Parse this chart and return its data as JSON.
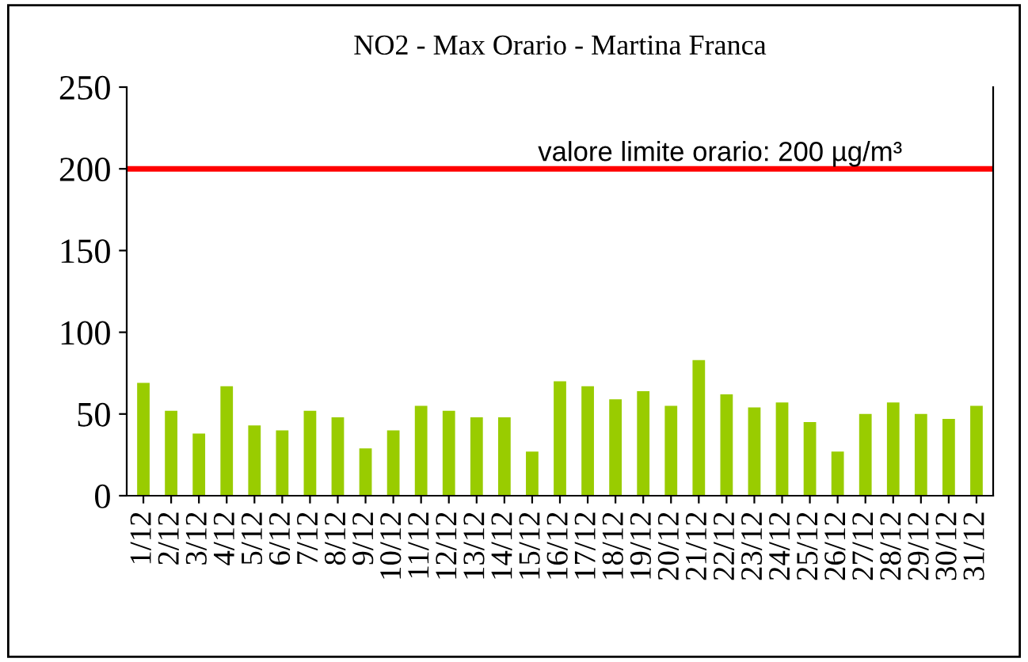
{
  "chart_data": {
    "type": "bar",
    "title": "NO2 - Max Orario - Martina Franca",
    "categories": [
      "1/12",
      "2/12",
      "3/12",
      "4/12",
      "5/12",
      "6/12",
      "7/12",
      "8/12",
      "9/12",
      "10/12",
      "11/12",
      "12/12",
      "13/12",
      "14/12",
      "15/12",
      "16/12",
      "17/12",
      "18/12",
      "19/12",
      "20/12",
      "21/12",
      "22/12",
      "23/12",
      "24/12",
      "25/12",
      "26/12",
      "27/12",
      "28/12",
      "29/12",
      "30/12",
      "31/12"
    ],
    "values": [
      69,
      52,
      38,
      67,
      43,
      40,
      52,
      48,
      29,
      40,
      55,
      52,
      48,
      48,
      27,
      70,
      67,
      59,
      64,
      55,
      83,
      62,
      54,
      57,
      45,
      27,
      50,
      57,
      50,
      47,
      55
    ],
    "color": "#99cc00",
    "ylim": [
      0,
      250
    ],
    "yticks": [
      0,
      50,
      100,
      150,
      200,
      250
    ],
    "grid": false,
    "legend": false,
    "ref_lines": [
      {
        "axis": "y",
        "value": 200,
        "label": "valore limite orario: 200 µg/m³",
        "color": "#ff0000",
        "line_style": "solid"
      }
    ]
  }
}
